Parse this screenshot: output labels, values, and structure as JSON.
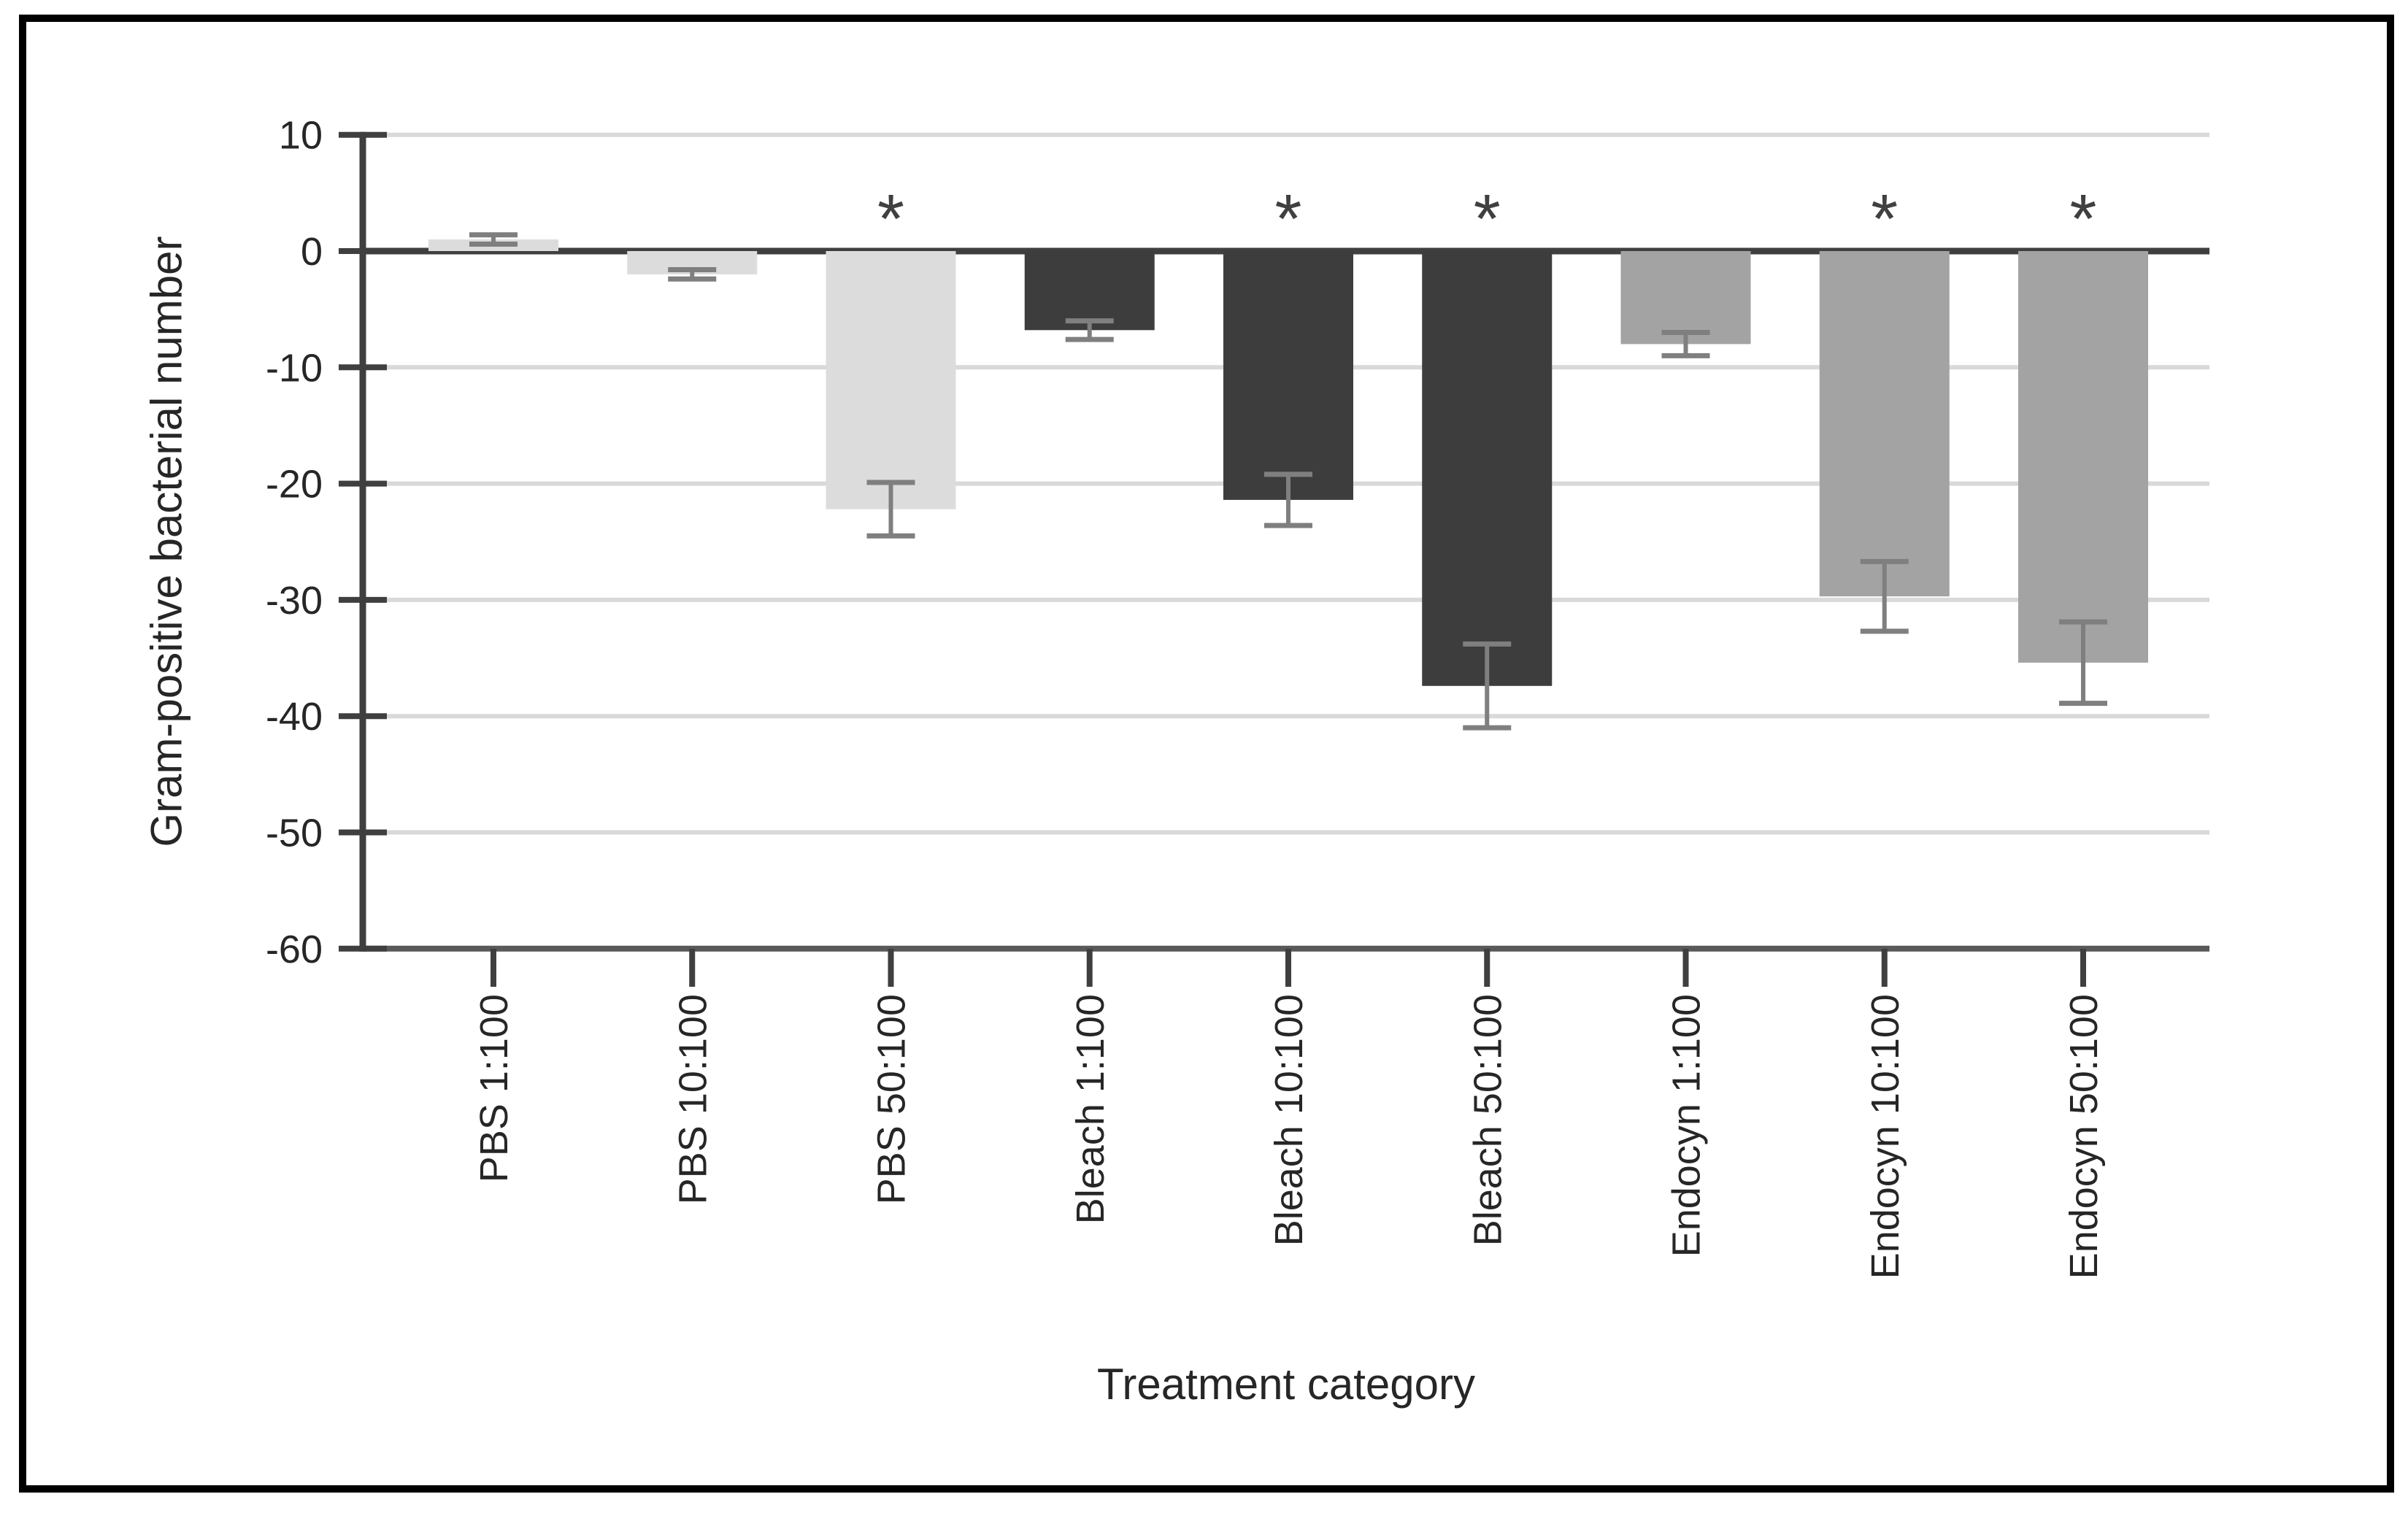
{
  "figure": {
    "background": "#ffffff",
    "border_color": "#000000"
  },
  "chart_data": {
    "type": "bar",
    "title": "",
    "xlabel": "Treatment category",
    "ylabel": "Gram-positive bacterial number",
    "ylim": [
      -60,
      10
    ],
    "yticks": [
      10,
      0,
      -10,
      -20,
      -30,
      -40,
      -50,
      -60
    ],
    "ytick_labels": [
      "10",
      "0",
      "-10",
      "-20",
      "-30",
      "-40",
      "-50",
      "-60"
    ],
    "grid": true,
    "legend": "none",
    "significance_marker": "*",
    "categories": [
      "PBS 1:100",
      "PBS 10:100",
      "PBS 50:100",
      "Bleach 1:100",
      "Bleach 10:100",
      "Bleach 50:100",
      "Endocyn 1:100",
      "Endocyn 10:100",
      "Endocyn 50:100"
    ],
    "series": [
      {
        "name": "Gram-positive bacterial number",
        "values": [
          1.0,
          -2.0,
          -22.2,
          -6.8,
          -21.4,
          -37.4,
          -8.0,
          -29.7,
          -35.4
        ],
        "errors": [
          0.4,
          0.4,
          2.3,
          0.8,
          2.2,
          3.6,
          1.0,
          3.0,
          3.5
        ],
        "significant": [
          false,
          false,
          true,
          false,
          true,
          true,
          false,
          true,
          true
        ],
        "bar_colors": [
          "#dcdcdc",
          "#dcdcdc",
          "#dcdcdc",
          "#3d3d3d",
          "#3d3d3d",
          "#3d3d3d",
          "#a3a3a3",
          "#a3a3a3",
          "#a3a3a3"
        ]
      }
    ],
    "group_colors": {
      "PBS": "#dcdcdc",
      "Bleach": "#3d3d3d",
      "Endocyn": "#a3a3a3"
    },
    "style_colors": {
      "error_bar": "#7f7f7f",
      "gridline": "#d9d9d9",
      "zero_line": "#3f3f3f",
      "y_axis_line": "#3f3f3f",
      "x_axis_line": "#595959",
      "tick": "#3f3f3f",
      "text": "#262626",
      "asterisk": "#404040"
    }
  }
}
